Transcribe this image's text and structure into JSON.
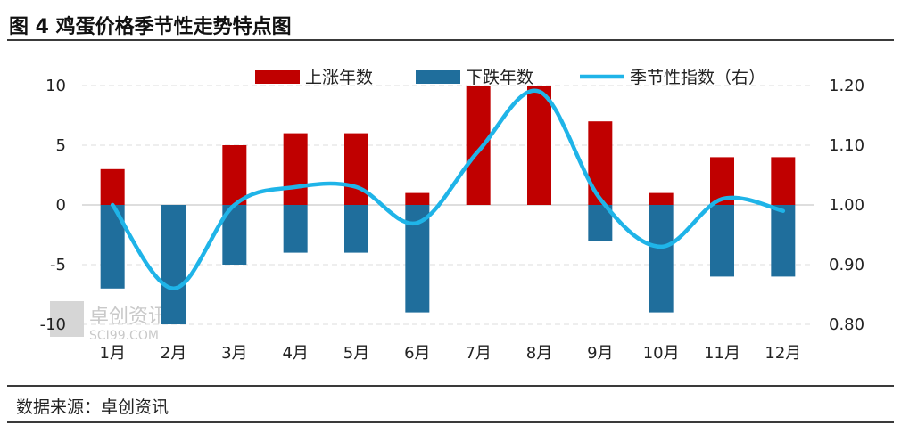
{
  "figure": {
    "title": "图 4 鸡蛋价格季节性走势特点图",
    "source": "数据来源：卓创资讯"
  },
  "watermark": {
    "name": "卓创资讯",
    "site": "SCI99.COM"
  },
  "chart_data": {
    "type": "bar",
    "categories": [
      "1月",
      "2月",
      "3月",
      "4月",
      "5月",
      "6月",
      "7月",
      "8月",
      "9月",
      "10月",
      "11月",
      "12月"
    ],
    "series": [
      {
        "name": "上涨年数",
        "kind": "bar",
        "axis": "left",
        "color": "#c00000",
        "values": [
          3,
          0,
          5,
          6,
          6,
          1,
          10,
          10,
          7,
          1,
          4,
          4
        ]
      },
      {
        "name": "下跌年数",
        "kind": "bar",
        "axis": "left",
        "color": "#1f6e9c",
        "values": [
          -7,
          -10,
          -5,
          -4,
          -4,
          -9,
          0,
          0,
          -3,
          -9,
          -6,
          -6
        ]
      },
      {
        "name": "季节性指数（右）",
        "kind": "line",
        "axis": "right",
        "color": "#1fb4e8",
        "values": [
          1.0,
          0.86,
          1.0,
          1.03,
          1.03,
          0.97,
          1.09,
          1.19,
          1.01,
          0.93,
          1.01,
          0.99
        ]
      }
    ],
    "y_left": {
      "min": -10,
      "max": 10,
      "ticks": [
        10,
        5,
        0,
        -5,
        -10
      ]
    },
    "y_right": {
      "min": 0.8,
      "max": 1.2,
      "ticks": [
        "1.20",
        "1.10",
        "1.00",
        "0.90",
        "0.80"
      ]
    },
    "grid": true,
    "legend_position": "top"
  }
}
